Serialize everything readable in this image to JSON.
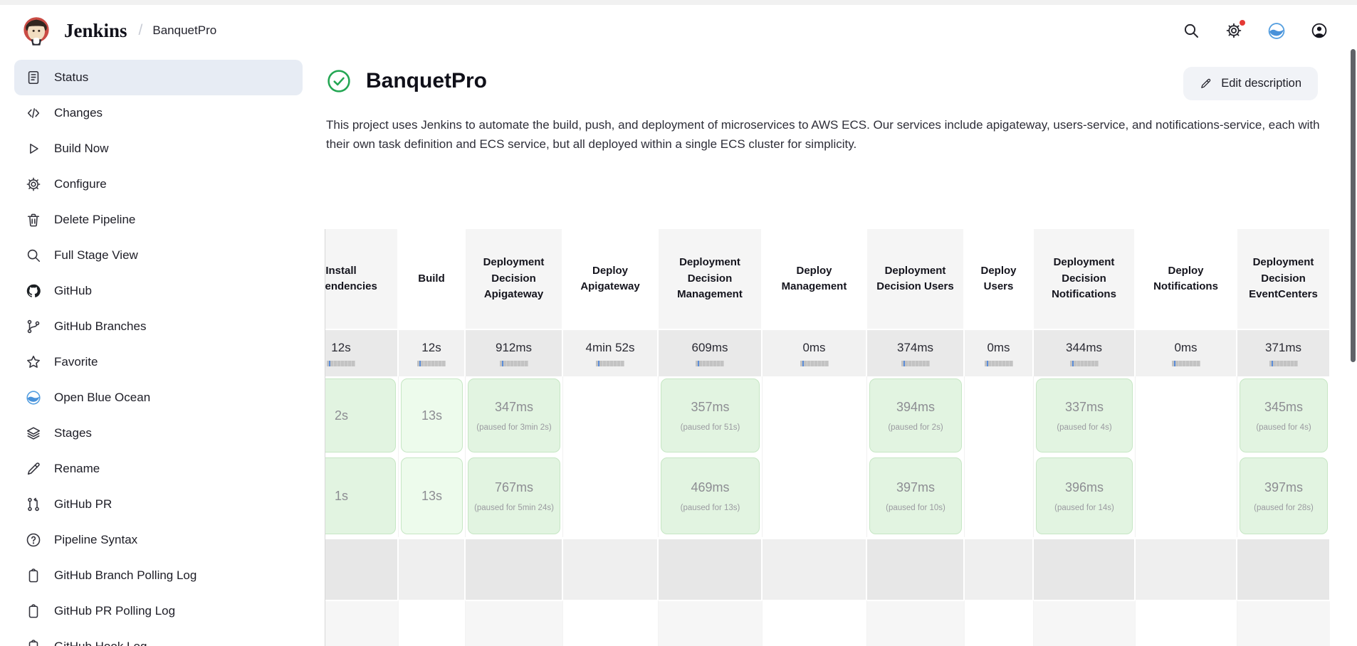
{
  "top_bar": {
    "brand": "Jenkins",
    "separator": "/",
    "breadcrumb": "BanquetPro",
    "icons": [
      "search-icon",
      "settings-gear-icon",
      "blue-ocean-icon",
      "profile-icon"
    ],
    "settings_notification_dot": true
  },
  "sidebar": {
    "items": [
      {
        "label": "Status",
        "icon": "document-icon",
        "active": true
      },
      {
        "label": "Changes",
        "icon": "code-icon",
        "active": false
      },
      {
        "label": "Build Now",
        "icon": "play-icon",
        "active": false
      },
      {
        "label": "Configure",
        "icon": "gear-icon",
        "active": false
      },
      {
        "label": "Delete Pipeline",
        "icon": "trash-icon",
        "active": false
      },
      {
        "label": "Full Stage View",
        "icon": "search-icon",
        "active": false
      },
      {
        "label": "GitHub",
        "icon": "github-icon",
        "active": false
      },
      {
        "label": "GitHub Branches",
        "icon": "branch-icon",
        "active": false
      },
      {
        "label": "Favorite",
        "icon": "star-icon",
        "active": false
      },
      {
        "label": "Open Blue Ocean",
        "icon": "blue-ocean-icon",
        "active": false
      },
      {
        "label": "Stages",
        "icon": "layers-icon",
        "active": false
      },
      {
        "label": "Rename",
        "icon": "pencil-icon",
        "active": false
      },
      {
        "label": "GitHub PR",
        "icon": "pull-request-icon",
        "active": false
      },
      {
        "label": "Pipeline Syntax",
        "icon": "help-icon",
        "active": false
      },
      {
        "label": "GitHub Branch Polling Log",
        "icon": "clipboard-icon",
        "active": false
      },
      {
        "label": "GitHub PR Polling Log",
        "icon": "clipboard-icon",
        "active": false
      },
      {
        "label": "GitHub Hook Log",
        "icon": "clipboard-icon",
        "active": false
      }
    ]
  },
  "page": {
    "status_icon": "success-check-icon",
    "title": "BanquetPro",
    "edit_button_label": "Edit description",
    "description": "This project uses Jenkins to automate the build, push, and deployment of microservices to AWS ECS. Our services include apigateway, users-service, and notifications-service, each with their own task definition and ECS service, but all deployed within a single ECS cluster for simplicity."
  },
  "stage_view": {
    "columns": [
      "Install Dependencies",
      "Build",
      "Deployment Decision Apigateway",
      "Deploy Apigateway",
      "Deployment Decision Management",
      "Deploy Management",
      "Deployment Decision Users",
      "Deploy Users",
      "Deployment Decision Notifications",
      "Deploy Notifications",
      "Deployment Decision EventCenters"
    ],
    "average_times": [
      "12s",
      "12s",
      "912ms",
      "4min 52s",
      "609ms",
      "0ms",
      "374ms",
      "0ms",
      "344ms",
      "0ms",
      "371ms"
    ],
    "builds": [
      {
        "cells": [
          {
            "time": "2s"
          },
          {
            "time": "13s"
          },
          {
            "time": "347ms",
            "paused": "(paused for 3min 2s)"
          },
          null,
          {
            "time": "357ms",
            "paused": "(paused for 51s)"
          },
          null,
          {
            "time": "394ms",
            "paused": "(paused for 2s)"
          },
          null,
          {
            "time": "337ms",
            "paused": "(paused for 4s)"
          },
          null,
          {
            "time": "345ms",
            "paused": "(paused for 4s)"
          }
        ]
      },
      {
        "cells": [
          {
            "time": "1s"
          },
          {
            "time": "13s"
          },
          {
            "time": "767ms",
            "paused": "(paused for 5min 24s)"
          },
          null,
          {
            "time": "469ms",
            "paused": "(paused for 13s)"
          },
          null,
          {
            "time": "397ms",
            "paused": "(paused for 10s)"
          },
          null,
          {
            "time": "396ms",
            "paused": "(paused for 14s)"
          },
          null,
          {
            "time": "397ms",
            "paused": "(paused for 28s)"
          }
        ]
      }
    ],
    "trailing_empty_rows": 2
  },
  "colors": {
    "success_green": "#23a653",
    "blue_ocean_blue": "#4b9fd8",
    "notification_red": "#e53935",
    "active_item_bg": "#e7ecf4",
    "stage_green_bg": "#e2f4e1"
  }
}
